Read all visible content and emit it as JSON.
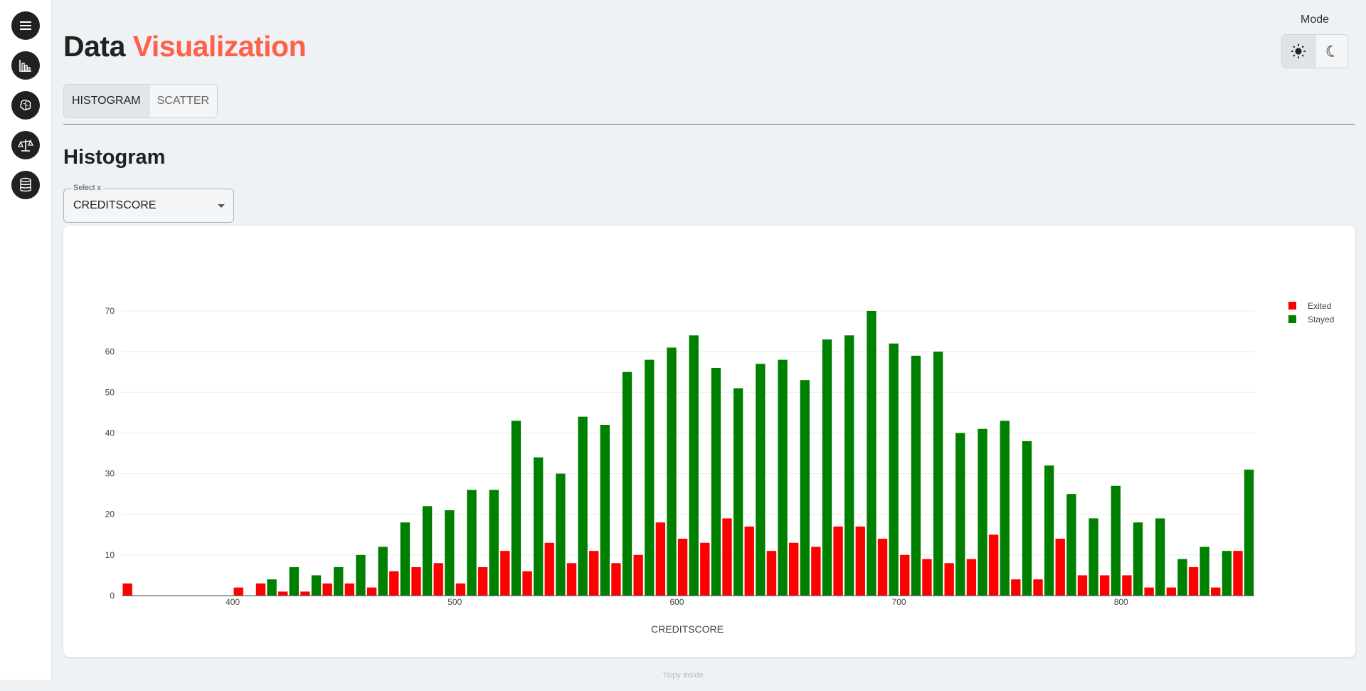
{
  "app": {
    "title_plain": "Data",
    "title_accent": "Visualization",
    "mode_label": "Mode",
    "footer": "Taipy inside"
  },
  "sidebar": {
    "items": [
      {
        "icon": "menu-icon"
      },
      {
        "icon": "bar-chart-icon"
      },
      {
        "icon": "brain-icon"
      },
      {
        "icon": "balance-scale-icon"
      },
      {
        "icon": "database-icon"
      }
    ]
  },
  "mode": {
    "options": [
      {
        "icon": "sun-icon",
        "active": true
      },
      {
        "icon": "moon-icon",
        "active": false
      }
    ]
  },
  "tabs": [
    {
      "label": "HISTOGRAM",
      "active": true
    },
    {
      "label": "SCATTER",
      "active": false
    }
  ],
  "section": {
    "title": "Histogram"
  },
  "select_x": {
    "label": "Select x",
    "value": "CREDITSCORE"
  },
  "colors": {
    "exited": "#ff0000",
    "stayed": "#008000",
    "accent": "#ff6049"
  },
  "chart_data": {
    "type": "bar",
    "xlabel": "CREDITSCORE",
    "ylabel": "",
    "xlim": [
      350,
      860
    ],
    "ylim": [
      0,
      70
    ],
    "x_ticks": [
      400,
      500,
      600,
      700,
      800
    ],
    "y_ticks": [
      0,
      10,
      20,
      30,
      40,
      50,
      60,
      70
    ],
    "grid": true,
    "legend": "top-right",
    "bins": [
      350,
      360,
      370,
      380,
      390,
      400,
      410,
      420,
      430,
      440,
      450,
      460,
      470,
      480,
      490,
      500,
      510,
      520,
      530,
      540,
      550,
      560,
      570,
      580,
      590,
      600,
      610,
      620,
      630,
      640,
      650,
      660,
      670,
      680,
      690,
      700,
      710,
      720,
      730,
      740,
      750,
      760,
      770,
      780,
      790,
      800,
      810,
      820,
      830,
      840,
      850
    ],
    "series": [
      {
        "name": "Exited",
        "values": [
          3,
          0,
          0,
          0,
          0,
          2,
          3,
          1,
          1,
          3,
          3,
          2,
          6,
          7,
          8,
          3,
          7,
          11,
          6,
          13,
          8,
          11,
          8,
          10,
          18,
          14,
          13,
          19,
          17,
          11,
          13,
          12,
          17,
          17,
          14,
          10,
          9,
          8,
          9,
          15,
          4,
          4,
          14,
          5,
          5,
          5,
          2,
          2,
          7,
          2,
          11
        ]
      },
      {
        "name": "Stayed",
        "values": [
          0,
          0,
          0,
          0,
          0,
          0,
          4,
          7,
          5,
          7,
          10,
          12,
          18,
          22,
          21,
          26,
          26,
          43,
          34,
          30,
          44,
          42,
          55,
          58,
          61,
          64,
          56,
          51,
          57,
          58,
          53,
          63,
          64,
          70,
          62,
          59,
          60,
          40,
          41,
          43,
          38,
          32,
          25,
          19,
          27,
          18,
          19,
          9,
          12,
          11,
          31
        ]
      }
    ]
  }
}
